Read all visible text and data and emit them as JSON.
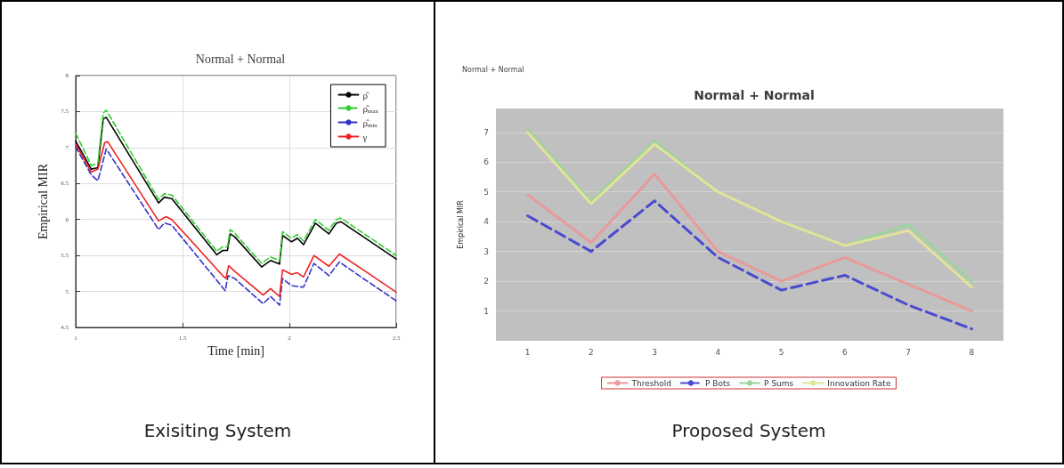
{
  "chart_data": [
    {
      "type": "line",
      "title": "Normal + Normal",
      "xlabel": "Time [min]",
      "ylabel": "Empirical MIR",
      "xlim": [
        1,
        2.5
      ],
      "xticks": [
        1,
        1.5,
        2,
        2.5
      ],
      "ylim": [
        4.5,
        8
      ],
      "yticks": [
        4.5,
        5,
        5.5,
        6,
        6.5,
        7,
        7.5,
        8
      ],
      "grid": true,
      "legend": "top right",
      "marker": "none",
      "annotations": [
        "Exisiting System"
      ],
      "series": [
        {
          "name": "ρ̂",
          "color": "#000000",
          "line_style": "solid",
          "x": [
            1,
            1.073,
            1.104,
            1.129,
            1.143,
            1.388,
            1.415,
            1.45,
            1.66,
            1.688,
            1.71,
            1.723,
            1.744,
            1.87,
            1.912,
            1.954,
            1.968,
            2.01,
            2.038,
            2.066,
            2.122,
            2.185,
            2.22,
            2.241,
            2.346,
            2.5
          ],
          "values": [
            7.09,
            6.7,
            6.72,
            7.4,
            7.42,
            6.23,
            6.31,
            6.29,
            5.51,
            5.57,
            5.57,
            5.8,
            5.76,
            5.34,
            5.43,
            5.38,
            5.78,
            5.69,
            5.74,
            5.65,
            5.95,
            5.8,
            5.95,
            5.97,
            5.76,
            5.45
          ]
        },
        {
          "name": "ρ̂$_{max}$",
          "color": "#33cc33",
          "line_style": "dashed",
          "x": [
            1,
            1.073,
            1.104,
            1.129,
            1.143,
            1.388,
            1.415,
            1.45,
            1.66,
            1.688,
            1.71,
            1.723,
            1.744,
            1.87,
            1.912,
            1.954,
            1.968,
            2.01,
            2.038,
            2.066,
            2.122,
            2.185,
            2.22,
            2.241,
            2.346,
            2.5
          ],
          "values": [
            7.2,
            6.75,
            6.78,
            7.48,
            7.52,
            6.28,
            6.36,
            6.34,
            5.56,
            5.62,
            5.62,
            5.86,
            5.81,
            5.39,
            5.48,
            5.43,
            5.83,
            5.74,
            5.79,
            5.7,
            6.0,
            5.85,
            6.0,
            6.02,
            5.81,
            5.5
          ]
        },
        {
          "name": "ρ̂$_{min}$",
          "color": "#3333cc",
          "line_style": "dashed",
          "x": [
            1,
            1.073,
            1.104,
            1.143,
            1.388,
            1.415,
            1.45,
            1.7,
            1.713,
            1.744,
            1.877,
            1.912,
            1.954,
            1.968,
            2.01,
            2.066,
            2.115,
            2.185,
            2.234,
            2.346,
            2.5
          ],
          "values": [
            7.01,
            6.62,
            6.54,
            6.98,
            5.86,
            5.95,
            5.92,
            5.01,
            5.22,
            5.18,
            4.83,
            4.93,
            4.81,
            5.18,
            5.08,
            5.06,
            5.39,
            5.22,
            5.41,
            5.18,
            4.87
          ]
        },
        {
          "name": "γ",
          "color": "#ee2222",
          "line_style": "solid",
          "x": [
            1,
            1.073,
            1.104,
            1.136,
            1.15,
            1.388,
            1.422,
            1.45,
            1.688,
            1.703,
            1.716,
            1.744,
            1.877,
            1.912,
            1.954,
            1.968,
            2.01,
            2.038,
            2.066,
            2.115,
            2.185,
            2.234,
            2.346,
            2.5
          ],
          "values": [
            7.05,
            6.66,
            6.7,
            7.07,
            7.08,
            5.98,
            6.04,
            6.0,
            5.22,
            5.18,
            5.36,
            5.28,
            4.95,
            5.04,
            4.93,
            5.3,
            5.24,
            5.26,
            5.2,
            5.5,
            5.35,
            5.52,
            5.3,
            4.99
          ]
        }
      ]
    },
    {
      "type": "line",
      "title": "Normal + Normal",
      "ylabel": "Empirical MIR",
      "categories": [
        "1",
        "2",
        "3",
        "4",
        "5",
        "6",
        "7",
        "8"
      ],
      "ylim": [
        0,
        7.8
      ],
      "yticks": [
        1,
        2,
        3,
        4,
        5,
        6,
        7
      ],
      "grid": "y",
      "legend": "bottom",
      "marker": "none",
      "annotations": [
        "Normal + Normal",
        "Proposed System"
      ],
      "series": [
        {
          "name": "Threshold",
          "color": "#e89a9a",
          "line_style": "solid",
          "values": [
            4.9,
            3.3,
            5.6,
            3.0,
            2.0,
            2.8,
            1.9,
            1.0
          ]
        },
        {
          "name": "P Bots",
          "color": "#4a4ad0",
          "line_style": "dashed",
          "values": [
            4.2,
            3.0,
            4.7,
            2.8,
            1.7,
            2.2,
            1.2,
            0.4
          ]
        },
        {
          "name": "P Sums",
          "color": "#9cd49c",
          "line_style": "solid",
          "values": [
            7.1,
            4.7,
            6.7,
            5.0,
            4.0,
            3.2,
            3.9,
            2.0
          ]
        },
        {
          "name": "Innovation Rate",
          "color": "#e2e29a",
          "line_style": "solid",
          "values": [
            7.0,
            4.6,
            6.6,
            5.0,
            4.0,
            3.2,
            3.7,
            1.8
          ]
        }
      ]
    }
  ]
}
